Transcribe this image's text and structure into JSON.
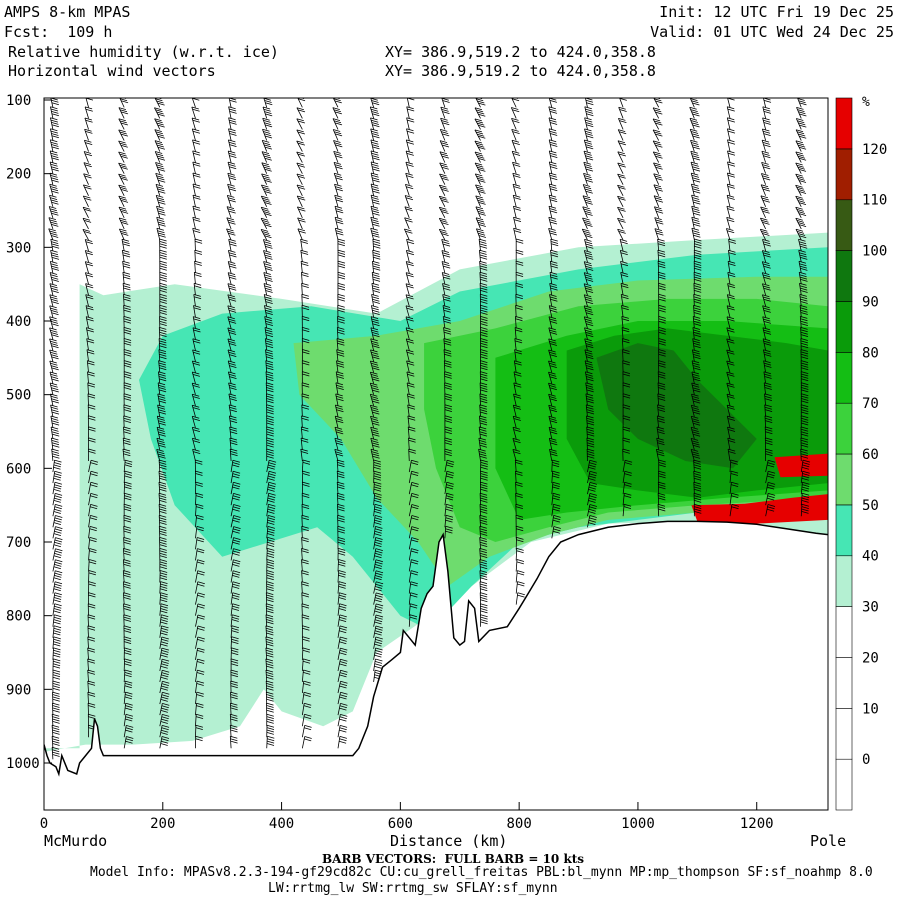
{
  "header": {
    "model": "AMPS 8-km MPAS",
    "fcst": "Fcst:  109 h",
    "init": "Init: 12 UTC Fri 19 Dec 25",
    "valid": "Valid: 01 UTC Wed 24 Dec 25",
    "field1": "Relative humidity (w.r.t. ice)",
    "field2": "Horizontal wind vectors",
    "xy1": "XY= 386.9,519.2 to 424.0,358.8",
    "xy2": "XY= 386.9,519.2 to 424.0,358.8"
  },
  "footer": {
    "start_label": "McMurdo",
    "end_label": "Pole",
    "barb_note": "BARB VECTORS:  FULL BARB = 10 kts",
    "model_info_1": "Model Info: MPASv8.2.3-194-gf29cd82c CU:cu_grell_freitas PBL:bl_mynn MP:mp_thompson SF:sf_noahmp 8.0",
    "model_info_2": "LW:rrtmg_lw SW:rrtmg_sw SFLAY:sf_mynn"
  },
  "colors": {
    "rh_bands": [
      "#ffffff",
      "#ffffff",
      "#ffffff",
      "#ffffff",
      "#b4f0d2",
      "#46e6b4",
      "#6edc6e",
      "#3cd23c",
      "#14be14",
      "#0a9b0a",
      "#0f780f",
      "#375a14",
      "#a01e00",
      "#e60000"
    ],
    "terrain": "#ffffff",
    "barb": "#000000"
  },
  "chart_data": {
    "type": "heatmap",
    "title": "Relative humidity (w.r.t. ice)",
    "xlabel": "Distance (km)",
    "ylabel": "",
    "x_ticks": [
      0,
      200,
      400,
      600,
      800,
      1000,
      1200
    ],
    "y_ticks": [
      100,
      200,
      300,
      400,
      500,
      600,
      700,
      800,
      900,
      1000
    ],
    "xlim": [
      0,
      1320
    ],
    "ylim": [
      1050,
      100
    ],
    "colorbar": {
      "unit": "%",
      "ticks": [
        0,
        10,
        20,
        30,
        40,
        50,
        60,
        70,
        80,
        90,
        100,
        110,
        120
      ],
      "range": [
        -10,
        130
      ]
    },
    "rh_regions": [
      {
        "rh": 35,
        "poly": [
          [
            0,
            980
          ],
          [
            60,
            980
          ],
          [
            60,
            350
          ],
          [
            100,
            365
          ],
          [
            220,
            350
          ],
          [
            400,
            370
          ],
          [
            560,
            390
          ],
          [
            700,
            330
          ],
          [
            900,
            300
          ],
          [
            1100,
            290
          ],
          [
            1320,
            280
          ],
          [
            1320,
            690
          ],
          [
            1100,
            672
          ],
          [
            950,
            675
          ],
          [
            820,
            700
          ],
          [
            720,
            760
          ],
          [
            650,
            800
          ],
          [
            560,
            850
          ],
          [
            520,
            930
          ],
          [
            470,
            950
          ],
          [
            400,
            930
          ],
          [
            370,
            900
          ],
          [
            330,
            950
          ],
          [
            250,
            970
          ],
          [
            150,
            975
          ],
          [
            70,
            975
          ],
          [
            0,
            985
          ]
        ]
      },
      {
        "rh": 45,
        "poly": [
          [
            200,
            420
          ],
          [
            300,
            390
          ],
          [
            450,
            380
          ],
          [
            600,
            400
          ],
          [
            700,
            360
          ],
          [
            900,
            330
          ],
          [
            1100,
            310
          ],
          [
            1320,
            300
          ],
          [
            1320,
            650
          ],
          [
            1100,
            660
          ],
          [
            900,
            680
          ],
          [
            800,
            700
          ],
          [
            720,
            760
          ],
          [
            650,
            820
          ],
          [
            600,
            800
          ],
          [
            560,
            760
          ],
          [
            520,
            720
          ],
          [
            460,
            680
          ],
          [
            380,
            700
          ],
          [
            300,
            720
          ],
          [
            220,
            650
          ],
          [
            180,
            560
          ],
          [
            160,
            480
          ]
        ]
      },
      {
        "rh": 55,
        "poly": [
          [
            420,
            430
          ],
          [
            560,
            420
          ],
          [
            700,
            400
          ],
          [
            850,
            360
          ],
          [
            1000,
            345
          ],
          [
            1200,
            340
          ],
          [
            1320,
            340
          ],
          [
            1320,
            650
          ],
          [
            1100,
            660
          ],
          [
            950,
            670
          ],
          [
            850,
            690
          ],
          [
            750,
            720
          ],
          [
            680,
            760
          ],
          [
            630,
            700
          ],
          [
            560,
            640
          ],
          [
            500,
            560
          ],
          [
            430,
            500
          ]
        ]
      },
      {
        "rh": 65,
        "poly": [
          [
            640,
            430
          ],
          [
            760,
            410
          ],
          [
            900,
            380
          ],
          [
            1050,
            370
          ],
          [
            1200,
            370
          ],
          [
            1320,
            380
          ],
          [
            1320,
            640
          ],
          [
            1100,
            650
          ],
          [
            950,
            660
          ],
          [
            850,
            680
          ],
          [
            760,
            700
          ],
          [
            700,
            680
          ],
          [
            660,
            600
          ],
          [
            640,
            520
          ]
        ]
      },
      {
        "rh": 75,
        "poly": [
          [
            760,
            450
          ],
          [
            880,
            420
          ],
          [
            1000,
            400
          ],
          [
            1150,
            400
          ],
          [
            1320,
            410
          ],
          [
            1320,
            630
          ],
          [
            1150,
            640
          ],
          [
            1000,
            650
          ],
          [
            880,
            660
          ],
          [
            800,
            670
          ],
          [
            760,
            600
          ]
        ]
      },
      {
        "rh": 85,
        "poly": [
          [
            880,
            440
          ],
          [
            960,
            420
          ],
          [
            1050,
            410
          ],
          [
            1150,
            420
          ],
          [
            1250,
            430
          ],
          [
            1320,
            440
          ],
          [
            1320,
            620
          ],
          [
            1200,
            630
          ],
          [
            1100,
            640
          ],
          [
            1000,
            630
          ],
          [
            920,
            620
          ],
          [
            880,
            560
          ]
        ]
      },
      {
        "rh": 95,
        "poly": [
          [
            930,
            450
          ],
          [
            1000,
            430
          ],
          [
            1060,
            440
          ],
          [
            1100,
            480
          ],
          [
            1150,
            520
          ],
          [
            1200,
            560
          ],
          [
            1160,
            600
          ],
          [
            1080,
            590
          ],
          [
            1000,
            560
          ],
          [
            950,
            520
          ]
        ]
      },
      {
        "rh": 120,
        "poly": [
          [
            1230,
            585
          ],
          [
            1320,
            580
          ],
          [
            1320,
            610
          ],
          [
            1240,
            612
          ]
        ]
      },
      {
        "rh": 120,
        "poly": [
          [
            1090,
            650
          ],
          [
            1180,
            648
          ],
          [
            1260,
            640
          ],
          [
            1320,
            635
          ],
          [
            1320,
            670
          ],
          [
            1200,
            675
          ],
          [
            1100,
            672
          ]
        ]
      }
    ],
    "terrain_profile": [
      [
        0,
        975
      ],
      [
        5,
        990
      ],
      [
        10,
        1000
      ],
      [
        20,
        1005
      ],
      [
        25,
        1015
      ],
      [
        30,
        990
      ],
      [
        40,
        1010
      ],
      [
        55,
        1015
      ],
      [
        60,
        1000
      ],
      [
        70,
        990
      ],
      [
        80,
        980
      ],
      [
        85,
        940
      ],
      [
        90,
        950
      ],
      [
        95,
        980
      ],
      [
        100,
        990
      ],
      [
        520,
        990
      ],
      [
        530,
        980
      ],
      [
        545,
        950
      ],
      [
        555,
        910
      ],
      [
        570,
        870
      ],
      [
        585,
        860
      ],
      [
        600,
        850
      ],
      [
        605,
        820
      ],
      [
        615,
        830
      ],
      [
        625,
        840
      ],
      [
        635,
        790
      ],
      [
        645,
        770
      ],
      [
        655,
        760
      ],
      [
        660,
        730
      ],
      [
        665,
        700
      ],
      [
        672,
        690
      ],
      [
        680,
        740
      ],
      [
        690,
        830
      ],
      [
        700,
        840
      ],
      [
        708,
        835
      ],
      [
        715,
        780
      ],
      [
        725,
        790
      ],
      [
        732,
        835
      ],
      [
        750,
        820
      ],
      [
        780,
        815
      ],
      [
        800,
        790
      ],
      [
        815,
        770
      ],
      [
        830,
        750
      ],
      [
        850,
        720
      ],
      [
        870,
        700
      ],
      [
        900,
        690
      ],
      [
        950,
        680
      ],
      [
        1000,
        675
      ],
      [
        1050,
        672
      ],
      [
        1100,
        672
      ],
      [
        1150,
        673
      ],
      [
        1200,
        676
      ],
      [
        1250,
        682
      ],
      [
        1300,
        688
      ],
      [
        1320,
        690
      ]
    ]
  }
}
